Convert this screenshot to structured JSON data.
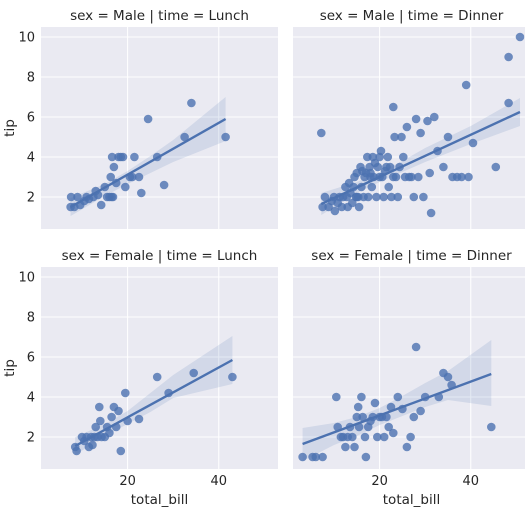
{
  "chart_data": {
    "type": "scatter",
    "xlabel": "total_bill",
    "ylabel": "tip",
    "xlim": [
      1,
      53
    ],
    "ylim": [
      0.4,
      10.5
    ],
    "xticks": [
      20,
      40
    ],
    "yticks": [
      2,
      4,
      6,
      8,
      10
    ],
    "grid": true,
    "legend": "none",
    "panels": [
      {
        "title": "sex = Male | time = Lunch",
        "points": [
          [
            7.5,
            1.5
          ],
          [
            8.3,
            1.5
          ],
          [
            9.0,
            2.0
          ],
          [
            9.6,
            1.6
          ],
          [
            10.5,
            1.8
          ],
          [
            11.0,
            2.0
          ],
          [
            11.5,
            1.9
          ],
          [
            12.5,
            2.0
          ],
          [
            13.0,
            2.3
          ],
          [
            13.5,
            2.1
          ],
          [
            14.2,
            1.6
          ],
          [
            15.0,
            2.5
          ],
          [
            15.5,
            2.0
          ],
          [
            16.0,
            2.0
          ],
          [
            16.5,
            2.0
          ],
          [
            16.8,
            2.0
          ],
          [
            16.3,
            3.0
          ],
          [
            16.6,
            4.0
          ],
          [
            17.0,
            3.5
          ],
          [
            17.5,
            2.7
          ],
          [
            18.0,
            4.0
          ],
          [
            18.5,
            4.0
          ],
          [
            19.0,
            4.0
          ],
          [
            19.5,
            2.5
          ],
          [
            20.5,
            3.0
          ],
          [
            21.0,
            3.0
          ],
          [
            21.5,
            4.0
          ],
          [
            22.5,
            3.0
          ],
          [
            23.0,
            2.2
          ],
          [
            24.5,
            5.9
          ],
          [
            26.5,
            4.0
          ],
          [
            28.0,
            2.6
          ],
          [
            32.5,
            5.0
          ],
          [
            34.0,
            6.7
          ],
          [
            41.5,
            5.0
          ],
          [
            7.6,
            2.0
          ]
        ],
        "fit": {
          "x": [
            7.5,
            41.5
          ],
          "y": [
            1.5,
            5.9
          ]
        },
        "ci": {
          "x": [
            7.5,
            15,
            20,
            25,
            30,
            41.5
          ],
          "upper": [
            1.95,
            2.65,
            3.3,
            4.05,
            4.85,
            7.0
          ],
          "lower": [
            1.05,
            2.05,
            2.65,
            3.2,
            3.75,
            4.8
          ]
        }
      },
      {
        "title": "sex = Male | time = Dinner",
        "points": [
          [
            7.2,
            5.2
          ],
          [
            7.5,
            1.5
          ],
          [
            8.0,
            2.0
          ],
          [
            8.8,
            1.5
          ],
          [
            9.5,
            1.8
          ],
          [
            10.0,
            2.0
          ],
          [
            10.2,
            1.3
          ],
          [
            10.8,
            1.7
          ],
          [
            11.2,
            2.0
          ],
          [
            11.7,
            1.5
          ],
          [
            12.0,
            2.0
          ],
          [
            12.5,
            2.5
          ],
          [
            12.8,
            2.0
          ],
          [
            13.0,
            1.5
          ],
          [
            13.3,
            2.7
          ],
          [
            13.6,
            2.2
          ],
          [
            14.0,
            1.7
          ],
          [
            14.3,
            2.5
          ],
          [
            14.5,
            3.0
          ],
          [
            14.8,
            2.0
          ],
          [
            15.0,
            3.2
          ],
          [
            15.3,
            2.0
          ],
          [
            15.5,
            1.5
          ],
          [
            15.8,
            3.5
          ],
          [
            16.0,
            2.5
          ],
          [
            16.2,
            3.3
          ],
          [
            16.5,
            2.0
          ],
          [
            16.7,
            3.0
          ],
          [
            17.0,
            3.2
          ],
          [
            17.3,
            4.0
          ],
          [
            17.5,
            2.0
          ],
          [
            17.8,
            3.5
          ],
          [
            18.0,
            3.0
          ],
          [
            18.3,
            2.5
          ],
          [
            18.5,
            4.0
          ],
          [
            18.7,
            3.0
          ],
          [
            19.0,
            3.7
          ],
          [
            19.3,
            2.0
          ],
          [
            19.6,
            3.5
          ],
          [
            20.0,
            3.0
          ],
          [
            20.3,
            4.3
          ],
          [
            20.6,
            3.0
          ],
          [
            20.9,
            2.0
          ],
          [
            21.2,
            3.3
          ],
          [
            21.5,
            3.5
          ],
          [
            21.8,
            4.0
          ],
          [
            22.0,
            2.5
          ],
          [
            22.3,
            3.5
          ],
          [
            22.6,
            2.0
          ],
          [
            23.0,
            3.0
          ],
          [
            23.3,
            5.0
          ],
          [
            23.6,
            3.0
          ],
          [
            24.0,
            2.0
          ],
          [
            24.4,
            3.5
          ],
          [
            24.8,
            5.0
          ],
          [
            25.2,
            4.0
          ],
          [
            25.6,
            3.0
          ],
          [
            26.0,
            5.5
          ],
          [
            26.5,
            3.0
          ],
          [
            27.0,
            3.0
          ],
          [
            27.5,
            2.0
          ],
          [
            28.0,
            5.9
          ],
          [
            28.5,
            3.0
          ],
          [
            29.0,
            5.2
          ],
          [
            29.6,
            2.0
          ],
          [
            30.5,
            5.8
          ],
          [
            31.0,
            3.2
          ],
          [
            31.3,
            1.2
          ],
          [
            32.0,
            6.0
          ],
          [
            32.7,
            4.3
          ],
          [
            34.0,
            3.5
          ],
          [
            35.0,
            5.0
          ],
          [
            36.0,
            3.0
          ],
          [
            37.0,
            3.0
          ],
          [
            38.0,
            3.0
          ],
          [
            39.0,
            7.6
          ],
          [
            39.5,
            3.0
          ],
          [
            40.5,
            4.7
          ],
          [
            45.5,
            3.5
          ],
          [
            48.3,
            9.0
          ],
          [
            48.3,
            6.7
          ],
          [
            50.8,
            10.0
          ],
          [
            23.0,
            6.5
          ],
          [
            20.0,
            4.0
          ],
          [
            15.0,
            2.0
          ],
          [
            18.0,
            3.2
          ]
        ],
        "fit": {
          "x": [
            7.2,
            50.8
          ],
          "y": [
            1.65,
            6.25
          ]
        },
        "ci": {
          "x": [
            7.2,
            15,
            20,
            25,
            30,
            40,
            50.8
          ],
          "upper": [
            2.2,
            2.75,
            3.25,
            3.8,
            4.45,
            5.55,
            6.95
          ],
          "lower": [
            1.1,
            2.2,
            2.75,
            3.25,
            3.75,
            4.65,
            5.55
          ]
        }
      },
      {
        "title": "sex = Female | time = Lunch",
        "points": [
          [
            8.5,
            1.5
          ],
          [
            8.8,
            1.3
          ],
          [
            10.0,
            2.0
          ],
          [
            10.5,
            1.8
          ],
          [
            11.0,
            2.0
          ],
          [
            11.5,
            1.5
          ],
          [
            12.0,
            2.0
          ],
          [
            12.3,
            1.6
          ],
          [
            12.7,
            2.0
          ],
          [
            13.0,
            2.5
          ],
          [
            13.4,
            2.0
          ],
          [
            13.8,
            3.5
          ],
          [
            14.0,
            2.8
          ],
          [
            14.3,
            2.0
          ],
          [
            15.0,
            2.0
          ],
          [
            15.5,
            2.5
          ],
          [
            16.0,
            2.2
          ],
          [
            16.5,
            3.0
          ],
          [
            17.0,
            3.5
          ],
          [
            17.5,
            2.5
          ],
          [
            18.0,
            3.3
          ],
          [
            18.5,
            1.3
          ],
          [
            19.5,
            4.2
          ],
          [
            20.0,
            2.8
          ],
          [
            22.5,
            2.9
          ],
          [
            26.5,
            5.0
          ],
          [
            29.0,
            4.2
          ],
          [
            34.5,
            5.2
          ],
          [
            43.0,
            5.0
          ]
        ],
        "fit": {
          "x": [
            8.5,
            43.0
          ],
          "y": [
            1.55,
            5.85
          ]
        },
        "ci": {
          "x": [
            8.5,
            15,
            20,
            25,
            30,
            43.0
          ],
          "upper": [
            2.0,
            2.65,
            3.3,
            4.2,
            5.1,
            7.05
          ],
          "lower": [
            1.1,
            2.05,
            2.65,
            3.25,
            3.95,
            4.65
          ]
        }
      },
      {
        "title": "sex = Female | time = Dinner",
        "points": [
          [
            3.1,
            1.0
          ],
          [
            5.3,
            1.0
          ],
          [
            6.0,
            1.0
          ],
          [
            7.5,
            1.0
          ],
          [
            10.5,
            4.0
          ],
          [
            10.8,
            2.5
          ],
          [
            11.5,
            2.0
          ],
          [
            12.0,
            2.0
          ],
          [
            12.5,
            1.5
          ],
          [
            13.0,
            2.0
          ],
          [
            13.5,
            2.5
          ],
          [
            14.0,
            2.0
          ],
          [
            14.5,
            1.5
          ],
          [
            15.0,
            3.0
          ],
          [
            15.3,
            3.5
          ],
          [
            15.5,
            2.5
          ],
          [
            16.0,
            4.0
          ],
          [
            16.3,
            3.0
          ],
          [
            16.8,
            2.0
          ],
          [
            17.0,
            1.0
          ],
          [
            17.5,
            2.5
          ],
          [
            18.0,
            2.8
          ],
          [
            18.5,
            3.0
          ],
          [
            19.0,
            3.7
          ],
          [
            19.5,
            2.0
          ],
          [
            20.0,
            3.0
          ],
          [
            20.5,
            3.0
          ],
          [
            21.0,
            2.0
          ],
          [
            21.5,
            3.0
          ],
          [
            22.0,
            2.5
          ],
          [
            22.5,
            3.5
          ],
          [
            23.0,
            2.2
          ],
          [
            24.0,
            4.0
          ],
          [
            25.0,
            3.4
          ],
          [
            26.0,
            1.5
          ],
          [
            26.8,
            2.0
          ],
          [
            27.5,
            3.0
          ],
          [
            28.0,
            6.5
          ],
          [
            29.0,
            3.3
          ],
          [
            30.0,
            4.0
          ],
          [
            33.0,
            4.0
          ],
          [
            34.0,
            5.2
          ],
          [
            35.0,
            5.0
          ],
          [
            35.8,
            4.6
          ],
          [
            44.5,
            2.5
          ]
        ],
        "fit": {
          "x": [
            3.1,
            44.5
          ],
          "y": [
            1.65,
            5.15
          ]
        },
        "ci": {
          "x": [
            3.1,
            10,
            15,
            20,
            25,
            30,
            35,
            44.5
          ],
          "upper": [
            2.45,
            2.7,
            3.0,
            3.45,
            4.05,
            4.7,
            5.3,
            6.85
          ],
          "lower": [
            0.8,
            1.6,
            2.05,
            2.6,
            3.05,
            3.5,
            3.85,
            3.55
          ]
        }
      }
    ]
  }
}
